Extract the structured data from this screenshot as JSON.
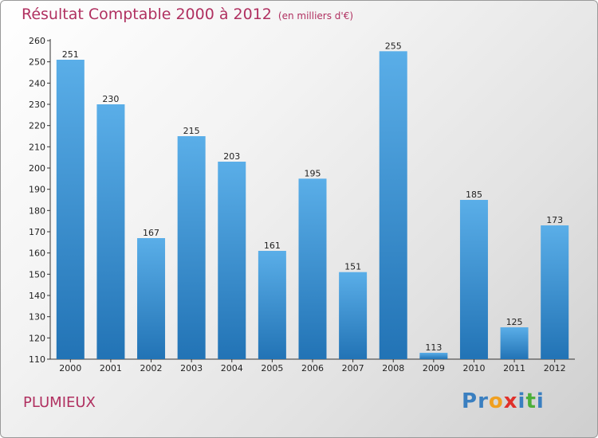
{
  "header": {
    "title": "Résultat Comptable 2000 à 2012",
    "subtitle": "(en milliers d'€)"
  },
  "footer": {
    "town": "PLUMIEUX",
    "logo_text": "Proxiti"
  },
  "colors": {
    "title": "#b03060",
    "bar_top": "#5aaee8",
    "bar_bottom": "#2273b5",
    "logo_letters": [
      "#3a7fc0",
      "#3a7fc0",
      "#f0a020",
      "#e0302a",
      "#3a7fc0",
      "#4caf3a",
      "#3a7fc0"
    ]
  },
  "chart_data": {
    "type": "bar",
    "title": "Résultat Comptable 2000 à 2012",
    "subtitle": "(en milliers d'€)",
    "xlabel": "",
    "ylabel": "",
    "categories": [
      "2000",
      "2001",
      "2002",
      "2003",
      "2004",
      "2005",
      "2006",
      "2007",
      "2008",
      "2009",
      "2010",
      "2011",
      "2012"
    ],
    "values": [
      251,
      230,
      167,
      215,
      203,
      161,
      195,
      151,
      255,
      113,
      185,
      125,
      173
    ],
    "ylim": [
      110,
      260
    ],
    "yticks": [
      110,
      120,
      130,
      140,
      150,
      160,
      170,
      180,
      190,
      200,
      210,
      220,
      230,
      240,
      250,
      260
    ],
    "grid": false,
    "legend": "none"
  }
}
